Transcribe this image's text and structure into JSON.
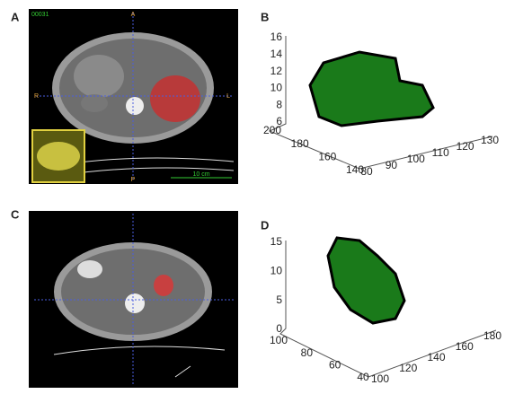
{
  "panels": [
    {
      "label": "A",
      "ct_texts": {
        "id": "00031",
        "top": "A",
        "left": "R",
        "right": "L",
        "bottom": "P",
        "scale": "10 cm"
      }
    },
    {
      "label": "B",
      "z_ticks": [
        6,
        8,
        10,
        12,
        14,
        16
      ],
      "y_ticks": [
        200,
        180,
        160,
        140
      ],
      "x_ticks": [
        80,
        90,
        100,
        110,
        120,
        130
      ]
    },
    {
      "label": "C"
    },
    {
      "label": "D",
      "z_ticks": [
        0,
        5,
        10,
        15
      ],
      "y_ticks": [
        100,
        80,
        60,
        40
      ],
      "x_ticks": [
        100,
        120,
        140,
        160,
        180
      ]
    }
  ]
}
